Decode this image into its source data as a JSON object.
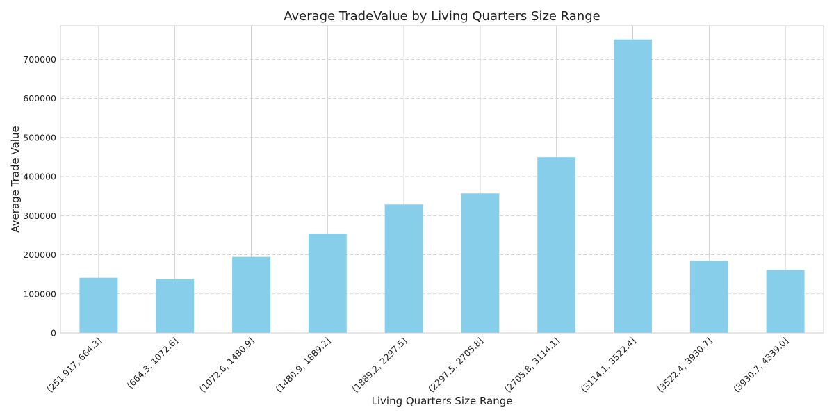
{
  "chart_data": {
    "type": "bar",
    "title": "Average TradeValue by Living Quarters Size Range",
    "xlabel": "Living Quarters Size Range",
    "ylabel": "Average Trade Value",
    "categories": [
      "(251.917, 664.3]",
      "(664.3, 1072.6]",
      "(1072.6, 1480.9]",
      "(1480.9, 1889.2]",
      "(1889.2, 2297.5]",
      "(2297.5, 2705.8]",
      "(2705.8, 3114.1]",
      "(3114.1, 3522.4]",
      "(3522.4, 3930.7]",
      "(3930.7, 4339.0]"
    ],
    "values": [
      141000,
      137500,
      194500,
      254000,
      328500,
      357000,
      449500,
      751000,
      184500,
      161000
    ],
    "ylim": [
      0,
      786000
    ],
    "yticks": [
      0,
      100000,
      200000,
      300000,
      400000,
      500000,
      600000,
      700000
    ],
    "ytick_labels": [
      "0",
      "100000",
      "200000",
      "300000",
      "400000",
      "500000",
      "600000",
      "700000"
    ],
    "grid": true,
    "bar_color": "#87ceeb",
    "grid_color": "#cccccc"
  }
}
